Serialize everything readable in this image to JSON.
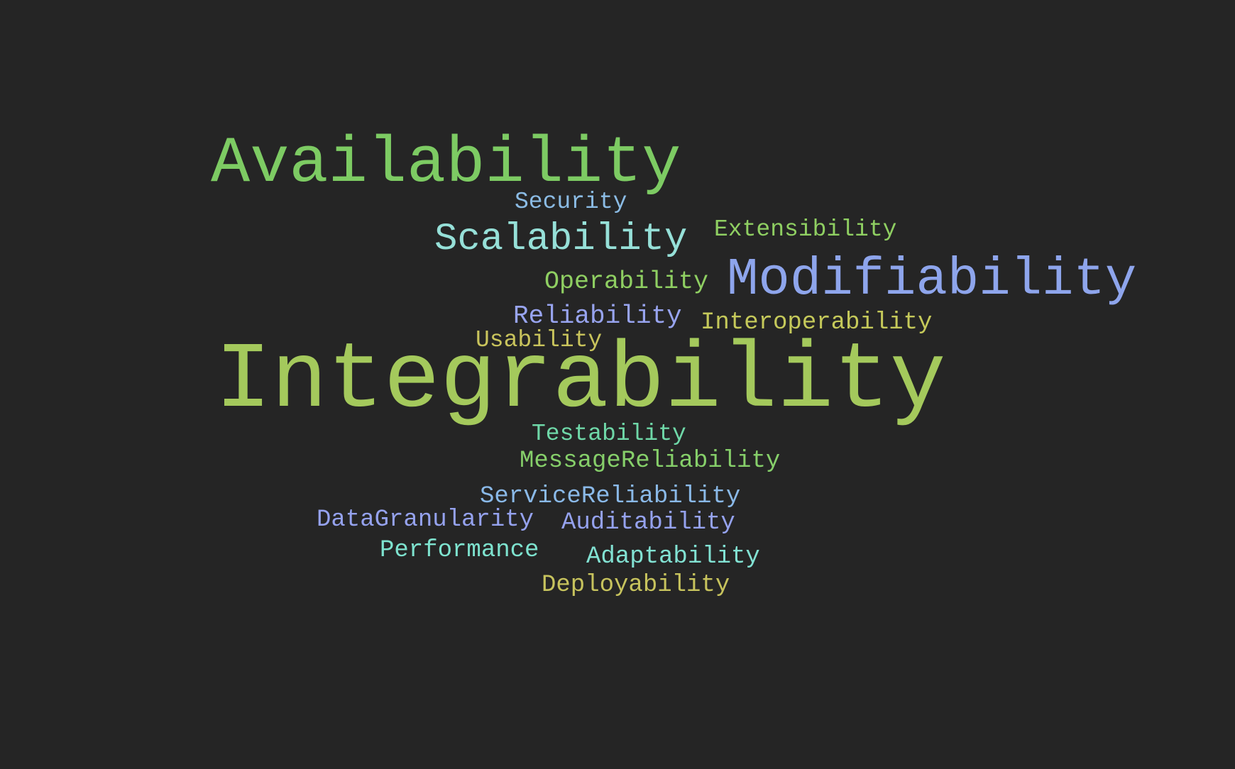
{
  "words": [
    {
      "id": "availability",
      "text": "Availability",
      "color": "#7dcb63"
    },
    {
      "id": "security",
      "text": "Security",
      "color": "#8bbbe4"
    },
    {
      "id": "scalability",
      "text": "Scalability",
      "color": "#96e0d8"
    },
    {
      "id": "extensibility",
      "text": "Extensibility",
      "color": "#8fcf62"
    },
    {
      "id": "operability",
      "text": "Operability",
      "color": "#8fcf62"
    },
    {
      "id": "modifiability",
      "text": "Modifiability",
      "color": "#8ea5ec"
    },
    {
      "id": "reliability",
      "text": "Reliability",
      "color": "#98a4ef"
    },
    {
      "id": "interoperability",
      "text": "Interoperability",
      "color": "#c5c95a"
    },
    {
      "id": "usability",
      "text": "Usability",
      "color": "#c9c45c"
    },
    {
      "id": "integrability",
      "text": "Integrability",
      "color": "#a4c95c"
    },
    {
      "id": "testability",
      "text": "Testability",
      "color": "#6fd8a8"
    },
    {
      "id": "messagereliability",
      "text": "MessageReliability",
      "color": "#86cf6a"
    },
    {
      "id": "servicereliability",
      "text": "ServiceReliability",
      "color": "#8ab9e8"
    },
    {
      "id": "datagranularity",
      "text": "DataGranularity",
      "color": "#95a2ee"
    },
    {
      "id": "auditability",
      "text": "Auditability",
      "color": "#95a2ee"
    },
    {
      "id": "performance",
      "text": "Performance",
      "color": "#7ee3cf"
    },
    {
      "id": "adaptability",
      "text": "Adaptability",
      "color": "#82e2d3"
    },
    {
      "id": "deployability",
      "text": "Deployability",
      "color": "#c7c35d"
    }
  ]
}
